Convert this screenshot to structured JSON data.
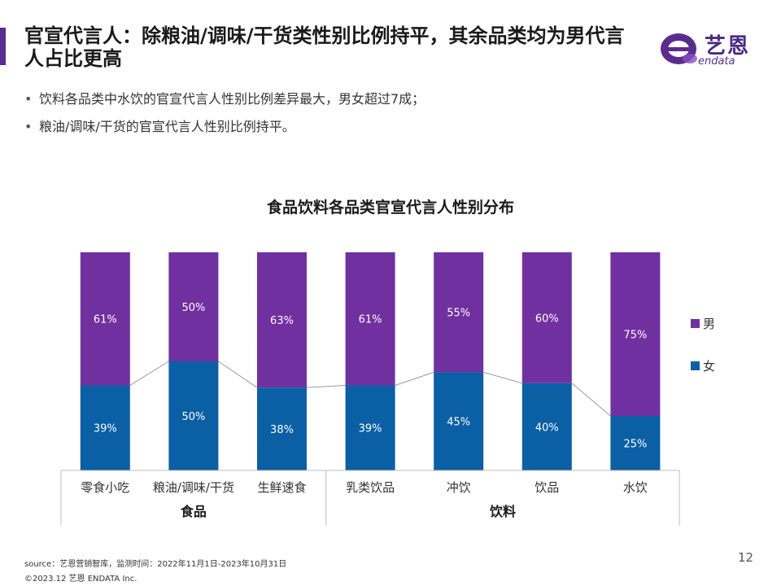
{
  "slide": {
    "title": "官宣代言人：除粮油/调味/干货类性别比例持平，其余品类均为男代言人占比更高",
    "bullets": [
      "饮料各品类中水饮的官宣代言人性别比例差异最大，男女超过7成；",
      "粮油/调味/干货的官宣代言人性别比例持平。"
    ],
    "page_number": "12"
  },
  "logo": {
    "cn": "艺恩",
    "en": "endata"
  },
  "footer": {
    "source": "source：艺恩营销智库，监测时间：2022年11月1日-2023年10月31日",
    "copyright": "©2023.12  艺恩 ENDATA Inc."
  },
  "colors": {
    "accent": "#5b2c8f",
    "male": "#7030a0",
    "female": "#0b5fa5",
    "axis": "#bfbfbf"
  },
  "chart_data": {
    "type": "bar",
    "stacked": true,
    "percent": true,
    "title": "食品饮料各品类官宣代言人性别分布",
    "categories": [
      "零食小吃",
      "粮油/调味/干货",
      "生鲜速食",
      "乳类饮品",
      "冲饮",
      "饮品",
      "水饮"
    ],
    "groups": [
      {
        "label": "食品",
        "categories": [
          "零食小吃",
          "粮油/调味/干货",
          "生鲜速食"
        ]
      },
      {
        "label": "饮料",
        "categories": [
          "乳类饮品",
          "冲饮",
          "饮品",
          "水饮"
        ]
      }
    ],
    "series": [
      {
        "name": "女",
        "values": [
          39,
          50,
          38,
          39,
          45,
          40,
          25
        ],
        "labels": [
          "39%",
          "50%",
          "38%",
          "39%",
          "45%",
          "40%",
          "25%"
        ]
      },
      {
        "name": "男",
        "values": [
          61,
          50,
          63,
          61,
          55,
          60,
          75
        ],
        "labels": [
          "61%",
          "50%",
          "63%",
          "61%",
          "55%",
          "60%",
          "75%"
        ]
      }
    ],
    "legend": {
      "position": "right",
      "items": [
        "男",
        "女"
      ]
    },
    "ylim": [
      0,
      100
    ],
    "grid": false
  }
}
